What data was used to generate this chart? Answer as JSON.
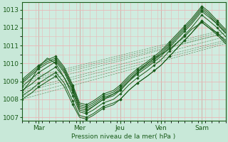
{
  "xlabel": "Pression niveau de la mer( hPa )",
  "bg_color": "#c8e8d8",
  "plot_bg_color": "#d0ece0",
  "grid_color": "#e8b8b8",
  "line_color": "#1a5c1a",
  "ylim": [
    1006.8,
    1013.4
  ],
  "xlim": [
    0,
    120
  ],
  "yticks": [
    1007,
    1008,
    1009,
    1010,
    1011,
    1012,
    1013
  ],
  "xtick_positions": [
    10,
    34,
    58,
    82,
    106
  ],
  "xtick_labels": [
    "Mar",
    "Mer",
    "Jeu",
    "Ven",
    "Sam"
  ],
  "vline_positions": [
    10,
    34,
    58,
    82,
    106
  ],
  "series": [
    {
      "xs": [
        0,
        5,
        10,
        15,
        20,
        25,
        30,
        34,
        38,
        42,
        48,
        54,
        58,
        63,
        68,
        74,
        78,
        82,
        87,
        92,
        96,
        100,
        106,
        110,
        115,
        120
      ],
      "ys": [
        1008.5,
        1008.8,
        1009.2,
        1009.5,
        1009.8,
        1009.2,
        1008.2,
        1007.3,
        1007.2,
        1007.4,
        1007.8,
        1008.0,
        1008.3,
        1008.8,
        1009.2,
        1009.6,
        1009.9,
        1010.2,
        1010.7,
        1011.2,
        1011.6,
        1012.0,
        1012.7,
        1012.4,
        1012.0,
        1011.5
      ]
    },
    {
      "xs": [
        0,
        5,
        10,
        15,
        20,
        25,
        30,
        34,
        38,
        42,
        48,
        54,
        58,
        63,
        68,
        74,
        78,
        82,
        87,
        92,
        96,
        100,
        106,
        110,
        115,
        120
      ],
      "ys": [
        1008.2,
        1008.5,
        1008.9,
        1009.2,
        1009.5,
        1008.9,
        1007.9,
        1007.1,
        1007.0,
        1007.2,
        1007.6,
        1007.8,
        1008.0,
        1008.5,
        1008.9,
        1009.3,
        1009.6,
        1009.9,
        1010.4,
        1010.9,
        1011.3,
        1011.7,
        1012.4,
        1012.1,
        1011.7,
        1011.2
      ]
    },
    {
      "xs": [
        0,
        5,
        10,
        15,
        20,
        25,
        30,
        34,
        38,
        42,
        48,
        54,
        58,
        63,
        68,
        74,
        78,
        82,
        87,
        92,
        96,
        100,
        106,
        110,
        115,
        120
      ],
      "ys": [
        1008.7,
        1009.1,
        1009.5,
        1009.8,
        1010.1,
        1009.5,
        1008.5,
        1007.5,
        1007.4,
        1007.6,
        1008.0,
        1008.2,
        1008.5,
        1009.0,
        1009.4,
        1009.8,
        1010.1,
        1010.4,
        1010.9,
        1011.4,
        1011.8,
        1012.2,
        1012.9,
        1012.6,
        1012.2,
        1011.7
      ]
    },
    {
      "xs": [
        0,
        5,
        10,
        15,
        20,
        25,
        30,
        34,
        38,
        42,
        48,
        54,
        58,
        63,
        68,
        74,
        78,
        82,
        87,
        92,
        96,
        100,
        106,
        110,
        115,
        120
      ],
      "ys": [
        1009.0,
        1009.4,
        1009.8,
        1010.1,
        1010.3,
        1009.7,
        1008.7,
        1007.7,
        1007.6,
        1007.8,
        1008.2,
        1008.4,
        1008.7,
        1009.2,
        1009.6,
        1010.0,
        1010.3,
        1010.6,
        1011.1,
        1011.6,
        1012.0,
        1012.4,
        1013.1,
        1012.8,
        1012.3,
        1011.8
      ]
    },
    {
      "xs": [
        0,
        5,
        10,
        15,
        20,
        25,
        30,
        34,
        38,
        42,
        48,
        54,
        58,
        63,
        68,
        74,
        78,
        82,
        87,
        92,
        96,
        100,
        106,
        110,
        115,
        120
      ],
      "ys": [
        1008.0,
        1008.3,
        1008.7,
        1009.0,
        1009.3,
        1008.7,
        1007.7,
        1007.0,
        1006.9,
        1007.1,
        1007.5,
        1007.7,
        1008.0,
        1008.5,
        1008.9,
        1009.3,
        1009.6,
        1009.9,
        1010.4,
        1010.9,
        1011.3,
        1011.7,
        1012.3,
        1012.0,
        1011.6,
        1011.1
      ]
    },
    {
      "xs": [
        0,
        5,
        10,
        15,
        20,
        25,
        30,
        34,
        38,
        42,
        48,
        54,
        58,
        63,
        68,
        74,
        78,
        82,
        87,
        92,
        96,
        100,
        106,
        110,
        115,
        120
      ],
      "ys": [
        1008.9,
        1009.3,
        1009.7,
        1010.0,
        1010.2,
        1009.6,
        1008.6,
        1007.6,
        1007.5,
        1007.7,
        1008.1,
        1008.3,
        1008.6,
        1009.1,
        1009.5,
        1009.9,
        1010.2,
        1010.5,
        1011.0,
        1011.5,
        1011.9,
        1012.3,
        1013.0,
        1012.7,
        1012.2,
        1011.7
      ]
    },
    {
      "xs": [
        0,
        5,
        10,
        15,
        20,
        25,
        30,
        34,
        38,
        42,
        48,
        54,
        58,
        63,
        68,
        74,
        78,
        82,
        87,
        92,
        96,
        100,
        106,
        110,
        115,
        120
      ],
      "ys": [
        1009.1,
        1009.5,
        1009.9,
        1010.2,
        1010.4,
        1009.8,
        1008.8,
        1007.8,
        1007.7,
        1007.9,
        1008.3,
        1008.5,
        1008.8,
        1009.3,
        1009.7,
        1010.1,
        1010.4,
        1010.7,
        1011.2,
        1011.7,
        1012.1,
        1012.5,
        1013.2,
        1012.9,
        1012.4,
        1011.9
      ]
    },
    {
      "xs": [
        0,
        5,
        10,
        15,
        20,
        25,
        30,
        34,
        38,
        42,
        48,
        54,
        58,
        63,
        68,
        74,
        78,
        82,
        87,
        92,
        96,
        100,
        106,
        110,
        115,
        120
      ],
      "ys": [
        1008.4,
        1009.0,
        1009.8,
        1010.3,
        1010.0,
        1009.2,
        1008.4,
        1007.4,
        1007.3,
        1007.6,
        1008.0,
        1008.3,
        1008.5,
        1009.0,
        1009.5,
        1010.0,
        1010.3,
        1010.5,
        1010.8,
        1011.2,
        1011.5,
        1011.9,
        1012.3,
        1012.0,
        1011.7,
        1011.3
      ]
    }
  ],
  "straight_lines": [
    [
      0,
      1008.5,
      120,
      1011.5
    ],
    [
      0,
      1008.2,
      120,
      1011.2
    ],
    [
      0,
      1008.7,
      120,
      1011.7
    ],
    [
      0,
      1009.0,
      120,
      1011.8
    ],
    [
      0,
      1008.0,
      120,
      1011.1
    ],
    [
      0,
      1008.9,
      120,
      1011.7
    ],
    [
      0,
      1009.1,
      120,
      1011.9
    ],
    [
      0,
      1008.4,
      120,
      1011.3
    ]
  ]
}
